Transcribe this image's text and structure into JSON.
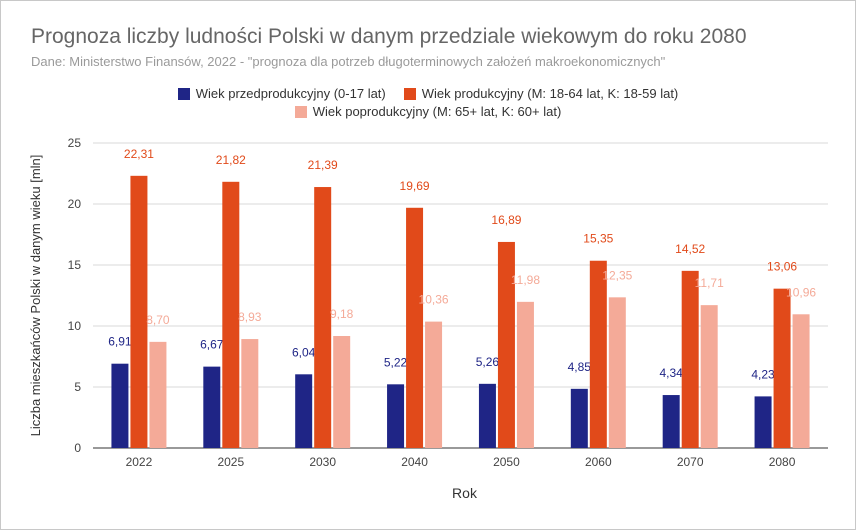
{
  "chart_data": {
    "type": "bar",
    "title": "Prognoza liczby ludności Polski w danym przedziale wiekowym do roku 2080",
    "subtitle": "Dane: Ministerstwo Finansów, 2022 - \"prognoza dla potrzeb długoterminowych założeń makroekonomicznych\"",
    "xlabel": "Rok",
    "ylabel": "Liczba mieszkańców Polski w danym wieku [mln]",
    "ylim": [
      0,
      25
    ],
    "yticks": [
      "0",
      "5",
      "10",
      "15",
      "20",
      "25"
    ],
    "grid": true,
    "legend_position": "top",
    "categories": [
      "2022",
      "2025",
      "2030",
      "2040",
      "2050",
      "2060",
      "2070",
      "2080"
    ],
    "series": [
      {
        "name": "Wiek przedprodukcyjny (0-17 lat)",
        "color": "#1f2586",
        "values": [
          6.91,
          6.67,
          6.04,
          5.22,
          5.26,
          4.85,
          4.34,
          4.23
        ],
        "labels": [
          "6,91",
          "6,67",
          "6,04",
          "5,22",
          "5,26",
          "4,85",
          "4,34",
          "4,23"
        ]
      },
      {
        "name": "Wiek produkcyjny (M: 18-64 lat, K: 18-59 lat)",
        "color": "#e14a1a",
        "values": [
          22.31,
          21.82,
          21.39,
          19.69,
          16.89,
          15.35,
          14.52,
          13.06
        ],
        "labels": [
          "22,31",
          "21,82",
          "21,39",
          "19,69",
          "16,89",
          "15,35",
          "14,52",
          "13,06"
        ]
      },
      {
        "name": "Wiek poprodukcyjny (M: 65+ lat, K: 60+ lat)",
        "color": "#f4aa98",
        "values": [
          8.7,
          8.93,
          9.18,
          10.36,
          11.98,
          12.35,
          11.71,
          10.96
        ],
        "labels": [
          "8,70",
          "8,93",
          "9,18",
          "10,36",
          "11,98",
          "12,35",
          "11,71",
          "10,96"
        ]
      }
    ]
  }
}
